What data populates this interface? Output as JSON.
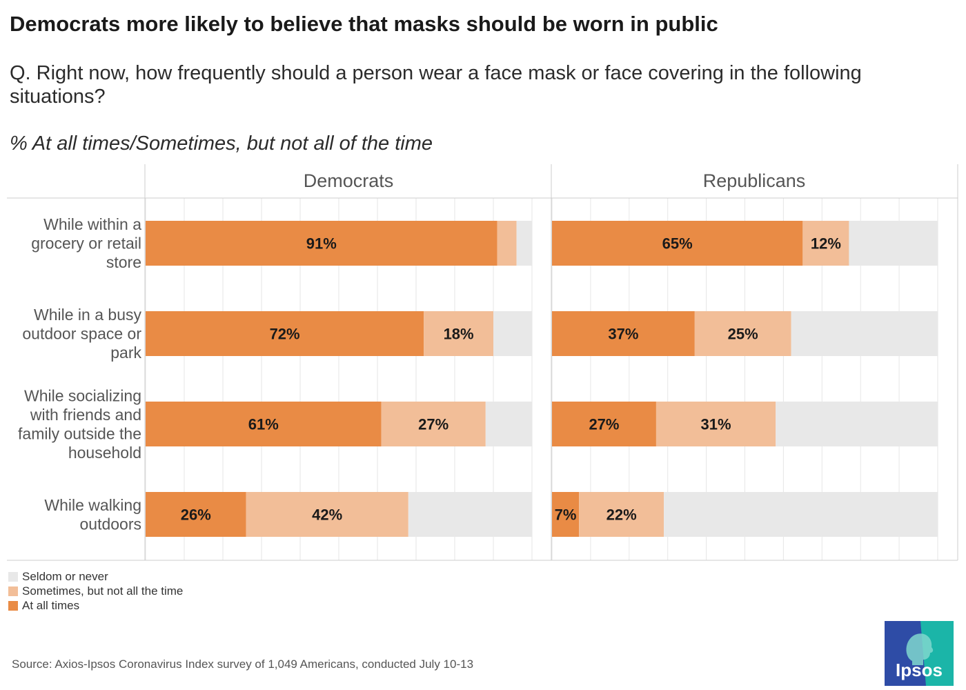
{
  "title": "Democrats more likely to believe that masks should be worn in public",
  "question": "Q. Right now, how frequently should a person wear a face mask or face covering in the following situations?",
  "subtitle": "% At all times/Sometimes, but not all of the time",
  "source": "Source: Axios-Ipsos Coronavirus Index survey of 1,049 Americans, conducted July 10-13",
  "logo_text": "Ipsos",
  "colors": {
    "at_all_times": "#E98B45",
    "sometimes": "#F2BE98",
    "seldom": "#E8E8E8",
    "grid": "#E6E6E6",
    "border": "#CCCCCC",
    "logo_blue": "#2E4CA6",
    "logo_teal": "#1BB5A8"
  },
  "legend": [
    {
      "label": "Seldom or never",
      "color_key": "seldom"
    },
    {
      "label": "Sometimes, but not all the time",
      "color_key": "sometimes"
    },
    {
      "label": "At all times",
      "color_key": "at_all_times"
    }
  ],
  "chart_data": {
    "type": "bar",
    "orientation": "horizontal",
    "stacked": true,
    "xlim": [
      0,
      100
    ],
    "grid": true,
    "categories": [
      "While within a grocery or retail store",
      "While in a busy outdoor space or park",
      "While socializing with friends and family outside the household",
      "While walking outdoors"
    ],
    "category_lines": [
      [
        "While within a",
        "grocery or retail",
        "store"
      ],
      [
        "While in a busy",
        "outdoor space or",
        "park"
      ],
      [
        "While socializing",
        "with friends and",
        "family outside the",
        "household"
      ],
      [
        "While walking",
        "outdoors"
      ]
    ],
    "panels": [
      {
        "name": "Democrats",
        "series": [
          {
            "name": "At all times",
            "values": [
              91,
              72,
              61,
              26
            ]
          },
          {
            "name": "Sometimes, but not all the time",
            "values": [
              5,
              18,
              27,
              42
            ]
          },
          {
            "name": "Seldom or never",
            "values": [
              4,
              10,
              12,
              32
            ]
          }
        ],
        "labels": {
          "At all times": [
            "91%",
            "72%",
            "61%",
            "26%"
          ],
          "Sometimes, but not all the time": [
            "",
            "18%",
            "27%",
            "42%"
          ]
        }
      },
      {
        "name": "Republicans",
        "series": [
          {
            "name": "At all times",
            "values": [
              65,
              37,
              27,
              7
            ]
          },
          {
            "name": "Sometimes, but not all the time",
            "values": [
              12,
              25,
              31,
              22
            ]
          },
          {
            "name": "Seldom or never",
            "values": [
              23,
              38,
              42,
              71
            ]
          }
        ],
        "labels": {
          "At all times": [
            "65%",
            "37%",
            "27%",
            "7%"
          ],
          "Sometimes, but not all the time": [
            "12%",
            "25%",
            "31%",
            "22%"
          ]
        }
      }
    ]
  }
}
